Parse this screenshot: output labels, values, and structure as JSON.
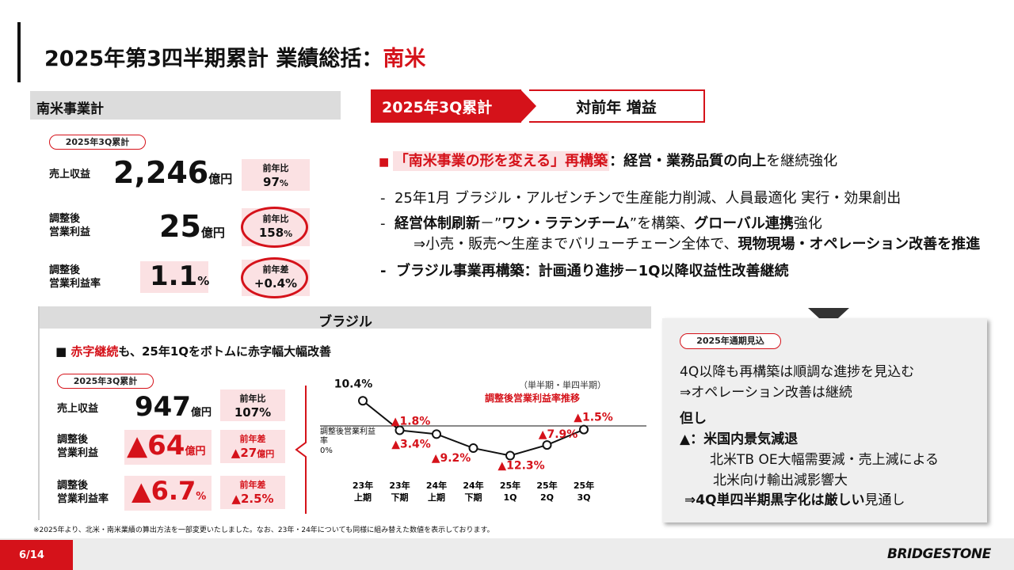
{
  "title": {
    "main": "2025年第3四半期累計 業績総括：",
    "highlight": "南米"
  },
  "sa": {
    "header": "南米事業計",
    "period": "2025年3Q累計",
    "rows": [
      {
        "label1": "売上収益",
        "label2": "",
        "value": "2,246",
        "unit": "億円",
        "cmp_label": "前年比",
        "cmp_value": "97",
        "cmp_unit": "%"
      },
      {
        "label1": "調整後",
        "label2": "営業利益",
        "value": "25",
        "unit": "億円",
        "cmp_label": "前年比",
        "cmp_value": "158",
        "cmp_unit": "%"
      },
      {
        "label1": "調整後",
        "label2": "営業利益率",
        "value": "1.1",
        "unit": "%",
        "cmp_label": "前年差",
        "cmp_value": "+0.4%",
        "cmp_unit": ""
      }
    ]
  },
  "br": {
    "header": "ブラジル",
    "headline_red": "赤字継続",
    "headline_rest": "も、25年1Qをボトムに赤字幅大幅改善",
    "period": "2025年3Q累計",
    "rows": [
      {
        "label1": "売上収益",
        "label2": "",
        "value": "947",
        "unit": "億円",
        "cmp_label": "前年比",
        "cmp_value": "107%"
      },
      {
        "label1": "調整後",
        "label2": "営業利益",
        "value": "▲64",
        "unit": "億円",
        "cmp_label": "前年差",
        "cmp_value": "▲27",
        "cmp_unit": "億円"
      },
      {
        "label1": "調整後",
        "label2": "営業利益率",
        "value": "▲6.7",
        "unit": "%",
        "cmp_label": "前年差",
        "cmp_value": "▲2.5%"
      }
    ]
  },
  "chart_data": {
    "type": "line",
    "title": "調整後営業利益率推移",
    "note": "（単半期・単四半期）",
    "axis_label": "調整後営業利益率",
    "zero_label": "0%",
    "categories": [
      {
        "l1": "23年",
        "l2": "上期"
      },
      {
        "l1": "23年",
        "l2": "下期"
      },
      {
        "l1": "24年",
        "l2": "上期"
      },
      {
        "l1": "24年",
        "l2": "下期"
      },
      {
        "l1": "25年",
        "l2": "1Q"
      },
      {
        "l1": "25年",
        "l2": "2Q"
      },
      {
        "l1": "25年",
        "l2": "3Q"
      }
    ],
    "values": [
      10.4,
      -1.8,
      -3.4,
      -9.2,
      -12.3,
      -7.9,
      -1.5
    ],
    "labels": [
      "10.4%",
      "▲1.8%",
      "▲3.4%",
      "▲9.2%",
      "▲12.3%",
      "▲7.9%",
      "▲1.5%"
    ]
  },
  "summary": {
    "badge_dark": "2025年3Q累計",
    "badge_light": "対前年 増益",
    "main_bullet_q": "「南米事業の形を変える」再構築",
    "main_bullet_colon": "：",
    "main_bullet_bold": "経営・業務品質の向上",
    "main_bullet_rest": "を継続強化",
    "item1": "25年1月 ブラジル・アルゼンチンで生産能力削減、人員最適化 実行・効果創出",
    "item2_bold": "経営体制刷新",
    "item2_mid": "－”",
    "item2_bold2": "ワン・ラテンチーム",
    "item2_rest": "”を構築、",
    "item2_bold3": "グローバル連携",
    "item2_end": "強化",
    "item2_sub_pre": "⇒小売・販売～生産までバリューチェーン全体で、",
    "item2_sub_bold": "現物現場・オペレーション改善を推進",
    "item3": "ブラジル事業再構築：計画通り進捗－1Q以降収益性改善継続"
  },
  "forecast": {
    "pill": "2025年通期見込",
    "l1": "4Q以降も再構築は順調な進捗を見込む",
    "l2": "⇒オペレーション改善は継続",
    "l3": "但し",
    "l4": "▲：米国内景気減退",
    "l5": "北米TB OE大幅需要減・売上減による",
    "l6": "北米向け輸出減影響大",
    "l7_pre": "⇒4Q単四半期黒字化は厳しい",
    "l7_rest": "見通し"
  },
  "footnote": "※2025年より、北米・南米業績の算出方法を一部変更いたしました。なお、23年・24年についても同様に組み替えた数値を表示しております。",
  "page": "6/14",
  "brand": "BRIDGESTONE",
  "colors": {
    "accent": "#d5121a",
    "pink": "#fbe1e3",
    "grey": "#dcdcdc"
  }
}
